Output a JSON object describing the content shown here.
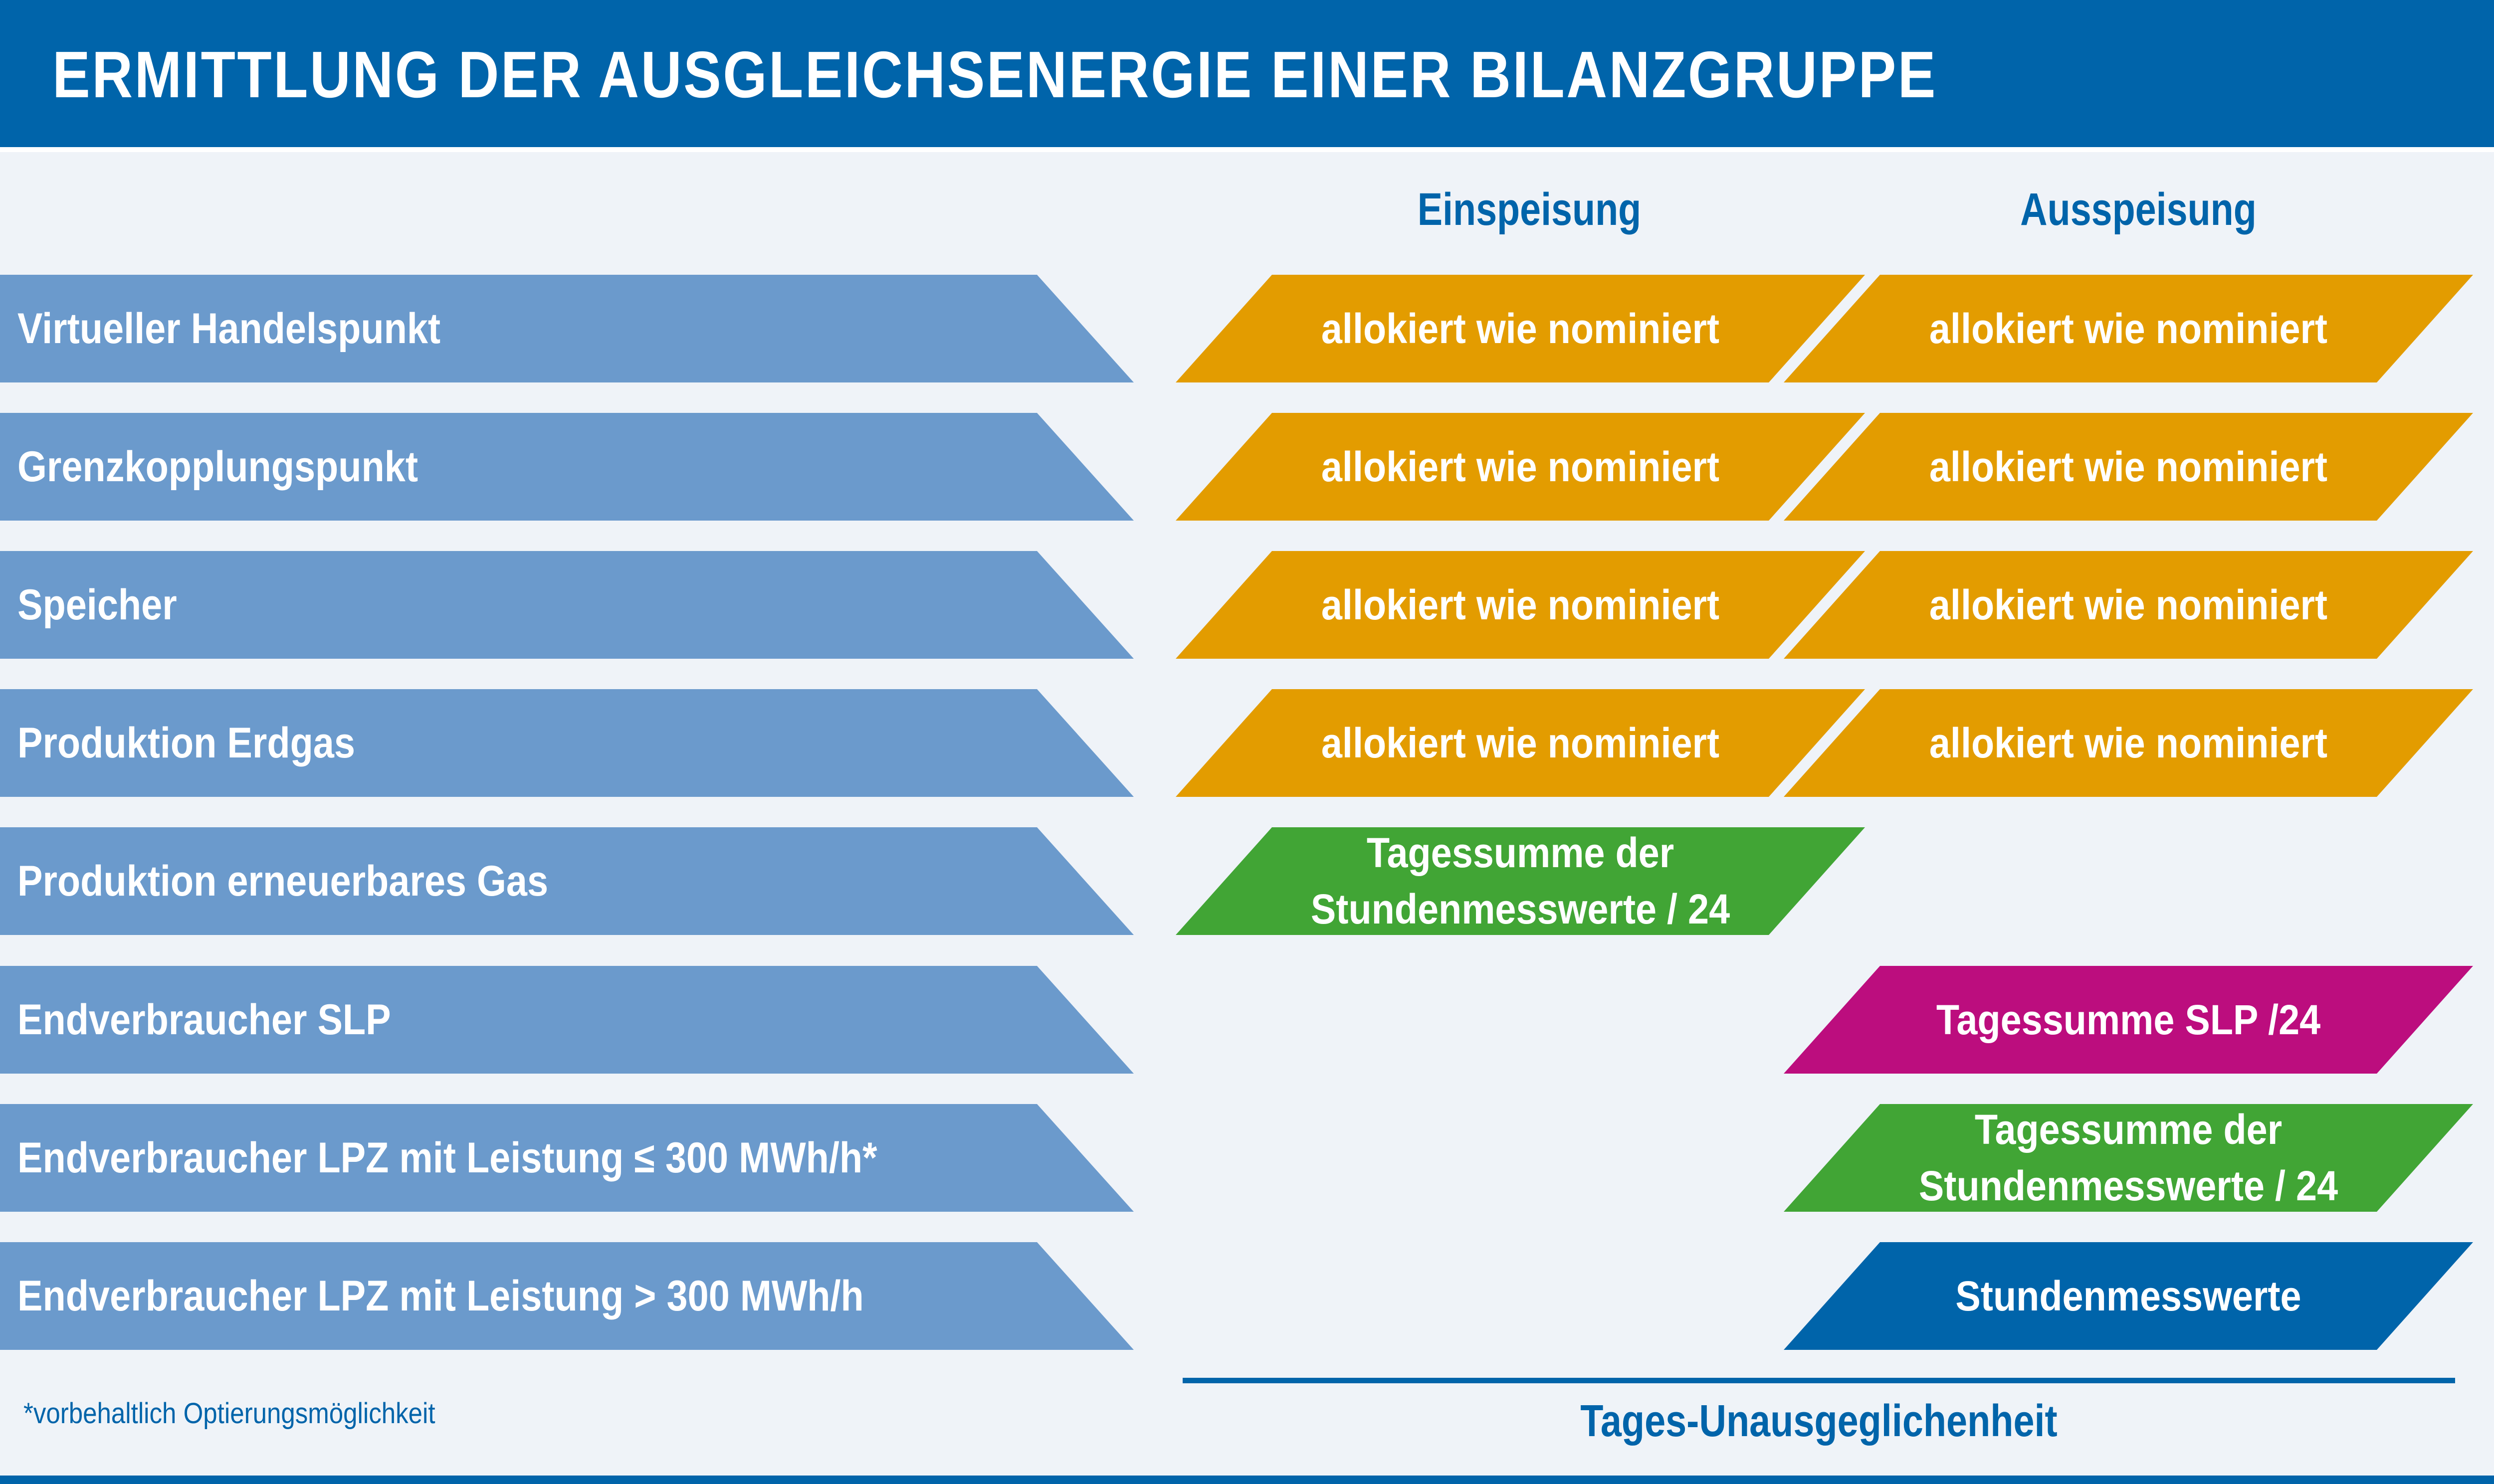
{
  "header": {
    "title": "ERMITTLUNG DER AUSGLEICHSENERGIE EINER BILANZGRUPPE"
  },
  "columns": {
    "einspeisung": "Einspeisung",
    "ausspeisung": "Ausspeisung"
  },
  "colors": {
    "header_blue": "#0064AA",
    "row_label_blue": "#6B9ACC",
    "background": "#EFF3F8",
    "allocated_orange": "#E39C00",
    "hourly_green": "#41A535",
    "slp_magenta": "#BC0D7E",
    "hourly_blue": "#0064AA"
  },
  "rows": [
    {
      "label": "Virtueller Handelspunkt",
      "einspeisung": {
        "text": "allokiert wie nominiert",
        "color": "#E39C00"
      },
      "ausspeisung": {
        "text": "allokiert wie nominiert",
        "color": "#E39C00"
      }
    },
    {
      "label": "Grenzkopplungspunkt",
      "einspeisung": {
        "text": "allokiert wie nominiert",
        "color": "#E39C00"
      },
      "ausspeisung": {
        "text": "allokiert wie nominiert",
        "color": "#E39C00"
      }
    },
    {
      "label": "Speicher",
      "einspeisung": {
        "text": "allokiert wie nominiert",
        "color": "#E39C00"
      },
      "ausspeisung": {
        "text": "allokiert wie nominiert",
        "color": "#E39C00"
      }
    },
    {
      "label": "Produktion Erdgas",
      "einspeisung": {
        "text": "allokiert wie nominiert",
        "color": "#E39C00"
      },
      "ausspeisung": {
        "text": "allokiert wie nominiert",
        "color": "#E39C00"
      }
    },
    {
      "label": "Produktion erneuerbares Gas",
      "einspeisung": {
        "text": "Tagessumme der\nStundenmesswerte / 24",
        "color": "#41A535"
      },
      "ausspeisung": null
    },
    {
      "label": "Endverbraucher SLP",
      "einspeisung": null,
      "ausspeisung": {
        "text": "Tagessumme SLP /24",
        "color": "#BC0D7E"
      }
    },
    {
      "label": "Endverbraucher LPZ mit Leistung ≤ 300 MWh/h*",
      "einspeisung": null,
      "ausspeisung": {
        "text": "Tagessumme der\nStundenmesswerte / 24",
        "color": "#41A535"
      }
    },
    {
      "label": "Endverbraucher LPZ mit Leistung > 300 MWh/h",
      "einspeisung": null,
      "ausspeisung": {
        "text": "Stundenmesswerte",
        "color": "#0064AA"
      }
    }
  ],
  "summary": "Tages-Unausgeglichenheit",
  "footnote": "*vorbehaltlich Optierungsmöglichkeit"
}
